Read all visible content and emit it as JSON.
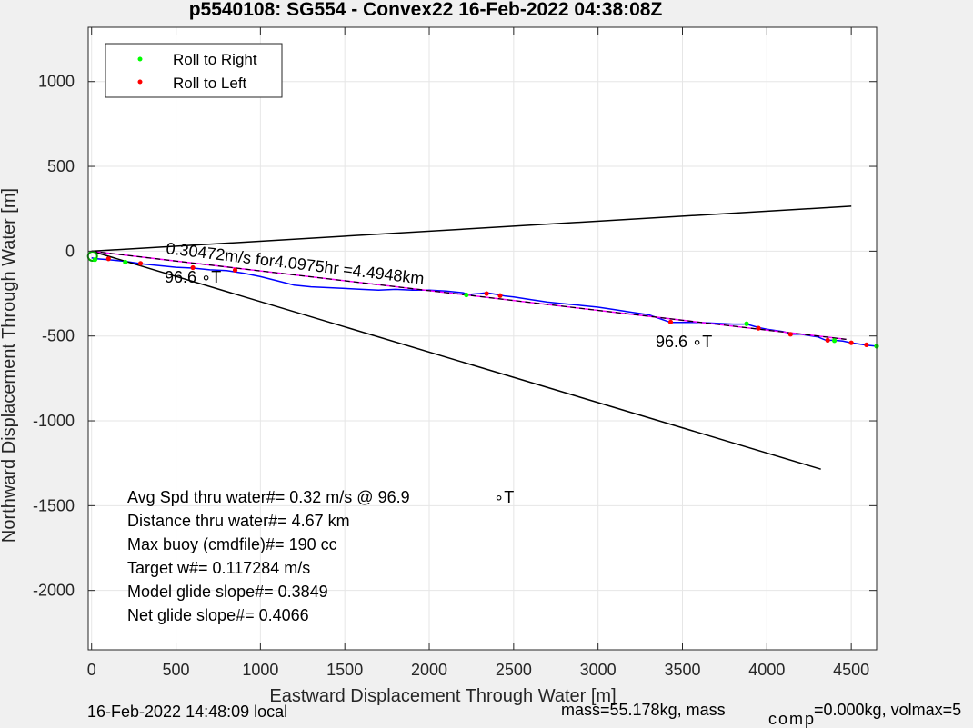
{
  "chart_data": {
    "type": "line",
    "title": "p5540108: SG554 - Convex22 16-Feb-2022 04:38:08Z",
    "xlabel": "Eastward Displacement Through Water [m]",
    "ylabel": "Northward Displacement Through Water [m]",
    "xlim": [
      -20,
      4650
    ],
    "ylim": [
      -2350,
      1320
    ],
    "xticks": [
      0,
      500,
      1000,
      1500,
      2000,
      2500,
      3000,
      3500,
      4000,
      4500
    ],
    "yticks": [
      1000,
      500,
      0,
      -500,
      -1000,
      -1500,
      -2000
    ],
    "grid": true,
    "legend_placement": "top-left",
    "legend": [
      {
        "label": "Roll to Right",
        "color": "#00ff00"
      },
      {
        "label": "Roll to Left",
        "color": "#ff0000"
      }
    ],
    "series": [
      {
        "color": "#0000ff",
        "x": [
          0,
          30,
          100,
          200,
          300,
          400,
          500,
          600,
          700,
          800,
          900,
          1000,
          1100,
          1200,
          1300,
          1400,
          1500,
          1600,
          1700,
          1800,
          1900,
          2000,
          2100,
          2200,
          2230,
          2300,
          2340,
          2400,
          2450,
          2500,
          2600,
          2700,
          2800,
          2900,
          3000,
          3100,
          3200,
          3300,
          3430,
          3500,
          3600,
          3700,
          3800,
          3880,
          3950,
          4000,
          4100,
          4150,
          4200,
          4300,
          4350,
          4400,
          4450,
          4500,
          4600,
          4650
        ],
        "y": [
          -40,
          -45,
          -50,
          -60,
          -75,
          -85,
          -95,
          -100,
          -110,
          -115,
          -130,
          -150,
          -175,
          -200,
          -210,
          -215,
          -220,
          -225,
          -230,
          -225,
          -230,
          -230,
          -235,
          -245,
          -255,
          -250,
          -245,
          -255,
          -265,
          -270,
          -285,
          -300,
          -310,
          -320,
          -330,
          -345,
          -360,
          -375,
          -420,
          -420,
          -420,
          -425,
          -430,
          -430,
          -450,
          -460,
          -475,
          -490,
          -490,
          -505,
          -525,
          -525,
          -530,
          -540,
          -555,
          -560
        ]
      },
      {
        "color": "#ff00ff",
        "x": [
          0,
          4470
        ],
        "y": [
          0,
          -520
        ]
      },
      {
        "color": "#000000",
        "x": [
          0,
          4470
        ],
        "y": [
          0,
          -520
        ]
      },
      {
        "color": "#000000",
        "x": [
          0,
          4500
        ],
        "y": [
          0,
          265
        ]
      },
      {
        "color": "#000000",
        "x": [
          0,
          4320
        ],
        "y": [
          0,
          -1285
        ]
      }
    ],
    "roll_right_points": {
      "x": [
        20,
        200,
        2220,
        3880,
        4400,
        4650
      ],
      "y": [
        -50,
        -65,
        -258,
        -428,
        -527,
        -560
      ]
    },
    "roll_left_points": {
      "x": [
        100,
        290,
        600,
        850,
        2340,
        2420,
        3430,
        3950,
        4140,
        4360,
        4500,
        4590
      ],
      "y": [
        -45,
        -72,
        -97,
        -112,
        -250,
        -262,
        -418,
        -454,
        -490,
        -525,
        -540,
        -552
      ]
    },
    "annotations": {
      "speed_line": "0.30472m/s for4.0975hr =4.4948km",
      "heading_start": "96.6 ∘T",
      "heading_end": "96.6 ∘T"
    },
    "stats": {
      "avg_speed_label": "Avg Spd thru water#=  0.32 m/s @  96.9",
      "avg_speed_unit": "∘T",
      "distance": "Distance thru water#=  4.67 km",
      "max_buoy": "Max buoy (cmdfile)#= 190 cc",
      "target_w": "Target w#= 0.117284 m/s",
      "model_glide": "Model glide slope#= 0.3849",
      "net_glide": "Net glide slope#= 0.4066"
    },
    "footer": {
      "local_time": "16-Feb-2022 14:48:09 local",
      "mass": "mass=55.178kg, mass",
      "comp_sub": "comp",
      "comp_rest": "=0.000kg, volmax=5"
    }
  },
  "colors": {
    "axes_bg": "#ffffff",
    "figure_bg": "#f0f0f0",
    "grid": "#e6e6e6"
  }
}
